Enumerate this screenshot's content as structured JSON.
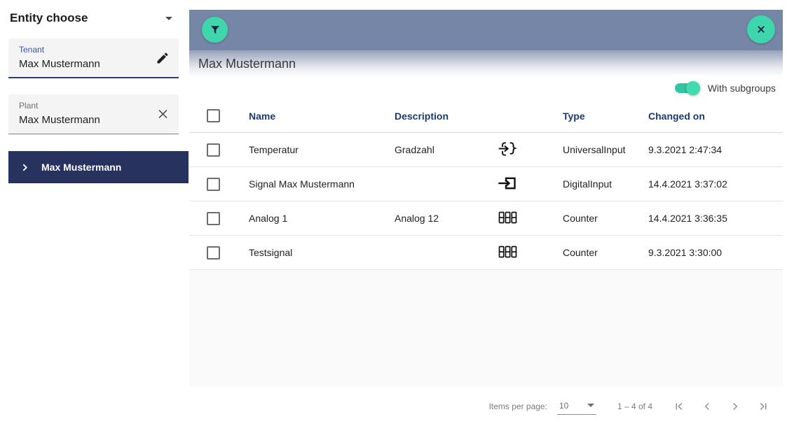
{
  "colors": {
    "slate": "#7586a6",
    "teal": "#3fd6ad",
    "navy": "#27325f",
    "header_text": "#1d3a6d"
  },
  "sidebar": {
    "title": "Entity choose",
    "tenant_field": {
      "label": "Tenant",
      "value": "Max Mustermann"
    },
    "plant_field": {
      "label": "Plant",
      "value": "Max Mustermann"
    },
    "entity_item": {
      "label": "Max Mustermann"
    }
  },
  "panel": {
    "title": "Max Mustermann",
    "subgroups_toggle": {
      "label": "With subgroups",
      "on": true
    },
    "table": {
      "columns": [
        "Name",
        "Description",
        "Type",
        "Changed on"
      ],
      "rows": [
        {
          "name": "Temperatur",
          "description": "Gradzahl",
          "icon": "universal-input-icon",
          "type": "UniversalInput",
          "changed_on": "9.3.2021 2:47:34"
        },
        {
          "name": "Signal Max Mustermann",
          "description": "",
          "icon": "digital-input-icon",
          "type": "DigitalInput",
          "changed_on": "14.4.2021 3:37:02"
        },
        {
          "name": "Analog 1",
          "description": "Analog 12",
          "icon": "counter-icon",
          "type": "Counter",
          "changed_on": "14.4.2021 3:36:35"
        },
        {
          "name": "Testsignal",
          "description": "",
          "icon": "counter-icon",
          "type": "Counter",
          "changed_on": "9.3.2021 3:30:00"
        }
      ]
    },
    "paginator": {
      "items_per_page_label": "Items per page:",
      "items_per_page_value": "10",
      "range_label": "1 – 4 of 4"
    },
    "icons": {
      "topbar": [
        "filter-icon",
        "close-icon"
      ],
      "row_types": [
        "universal-input-icon",
        "digital-input-icon",
        "counter-icon"
      ],
      "pagination": [
        "first-page-icon",
        "previous-page-icon",
        "next-page-icon",
        "last-page-icon"
      ]
    }
  }
}
